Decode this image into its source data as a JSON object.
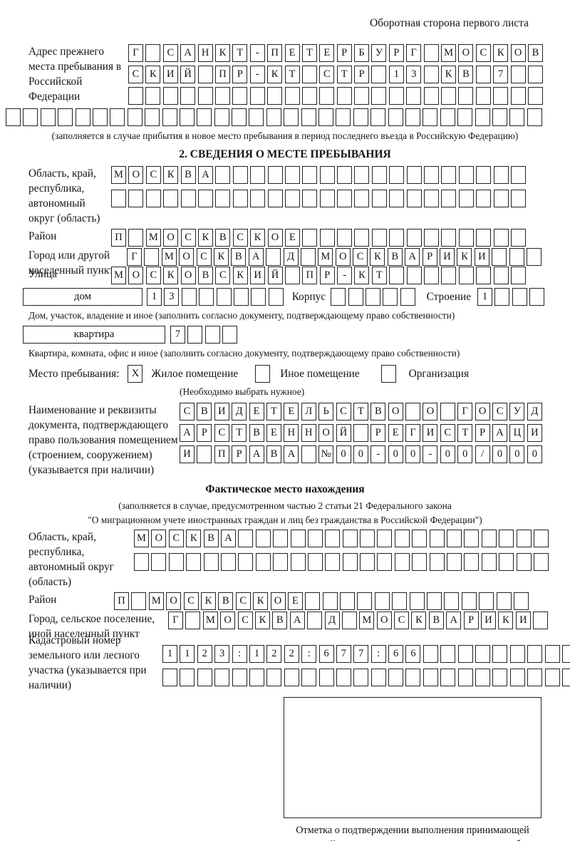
{
  "header": {
    "title": "Оборотная сторона первого листа"
  },
  "prev_address": {
    "label": "Адрес прежнего места пребывания в Российской Федерации",
    "rows": [
      "Г САНКТ-ПЕТЕРБУРГ МОСКОВ",
      "СКИЙ ПР-КТ СТР 13 КВ 7  ",
      "                        "
    ],
    "overflow_row": "                               ",
    "note": "(заполняется в случае прибытия в новое место пребывания в период последнего въезда в Российскую Федерацию)"
  },
  "section2": {
    "title": "2. СВЕДЕНИЯ О МЕСТЕ ПРЕБЫВАНИЯ",
    "region": {
      "label": "Область, край, республика, автономный округ (область)",
      "rows": [
        "МОСКВА                  ",
        "                        "
      ]
    },
    "district": {
      "label": "Район",
      "row": "П МОСКВСКОЕ             "
    },
    "city": {
      "label": "Город или другой населенный пункт",
      "row": "Г МОСКВА Д МОСКВАРИКИ   "
    },
    "street": {
      "label": "Улица",
      "row": "МОСКОВСКИЙ ПР-КТ        "
    },
    "house": {
      "label": "дом",
      "cells": "13      ",
      "korpus_label": "Корпус",
      "korpus_cells": "     ",
      "stroenie_label": "Строение",
      "stroenie_cells": "1   "
    },
    "house_note": "Дом, участок, владение и иное (заполнить согласно документу, подтверждающему право собственности)",
    "apartment": {
      "label": "квартира",
      "cells": "7   "
    },
    "apartment_note": "Квартира, комната, офис и иное (заполнить согласно документу, подтверждающему право собственности)",
    "stay": {
      "label": "Место пребывания:",
      "options": [
        {
          "label": "Жилое помещение",
          "mark": "X"
        },
        {
          "label": "Иное помещение",
          "mark": ""
        },
        {
          "label": "Организация",
          "mark": ""
        }
      ],
      "note": "(Необходимо выбрать нужное)"
    },
    "document": {
      "label": "Наименование и реквизиты документа, подтверждающего право пользования помещением (строением, сооружением) (указывается при наличии)",
      "rows": [
        "СВИДЕТЕЛЬСТВО О ГОСУД",
        "АРСТВЕННОЙ РЕГИСТРАЦИ",
        "И ПРАВА №00-00-00/000"
      ]
    }
  },
  "fact": {
    "title": "Фактическое место нахождения",
    "note1": "(заполняется в случае, предусмотренном частью 2 статьи 21 Федерального закона",
    "note2": "\"О миграционном учете иностранных граждан и лиц без гражданства в Российской Федерации\")",
    "region": {
      "label": "Область, край, республика, автономный округ (область)",
      "rows": [
        "МОСКВА                  ",
        "                        "
      ]
    },
    "district": {
      "label": "Район",
      "row": "П МОСКВСКОЕ             "
    },
    "city": {
      "label": "Город, сельское поселение, иной населенный пункт",
      "row": "Г МОСКВА Д МОСКВАРИКИ "
    },
    "cadastral": {
      "label": "Кадастровый номер земельного или лесного участка (указывается при наличии)",
      "rows": [
        "1123:122:677:66         ",
        "                        "
      ]
    },
    "stamp_caption": "Отметка о подтверждении выполнения принимающей стороной и иностранным гражданином или лицом без гражданства действий, необходимых для его постановки на учет по месту пребывания"
  }
}
